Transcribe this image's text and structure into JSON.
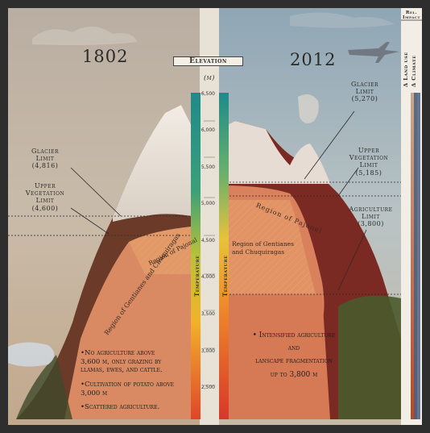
{
  "years": {
    "past": "1802",
    "present": "2012"
  },
  "elevation": {
    "title": "Elevation",
    "unit": "(m)",
    "ticks": [
      "6,500",
      "6,000",
      "5,500",
      "5,000",
      "4,500",
      "4,000",
      "3,500",
      "3,000",
      "2,500"
    ]
  },
  "temperature_label": "Temperature",
  "past_labels": {
    "glacier": "Glacier\nLimit\n(4,816)",
    "vegetation": "Upper\nVegetation\nLimit\n(4,600)",
    "pajonal": "Region of Pajonal",
    "gentianes": "Region of Gentianes and Chuquiragas"
  },
  "present_labels": {
    "glacier": "Glacier\nLimit\n(5,270)",
    "vegetation": "Upper\nVegetation\nLimit\n(5,185)",
    "agriculture": "Agriculture\nLimit\n(3,800)",
    "pajonal": "Region of Pajonal",
    "gentianes": "Region of Gentianes\nand Chuquiragas"
  },
  "past_notes": [
    "•No agriculture above\n3,600 m, only grazing by\nllamas, ewes, and cattle.",
    "•Cultivation of potato above\n3,000 m",
    "•Scattered agriculture."
  ],
  "present_note": "• Intensified agriculture\nand\nlanscape fragmentation\nup to 3,800 m",
  "side_panel": {
    "header": "Rel.\nImpact",
    "land_use": "Δ Land use",
    "climate": "Δ Climate"
  },
  "colors": {
    "temp_top": "#1e8a8a",
    "temp_bottom": "#e0452a",
    "land_use_bar": "#b84a2a",
    "climate_bar": "#4a5f80"
  }
}
